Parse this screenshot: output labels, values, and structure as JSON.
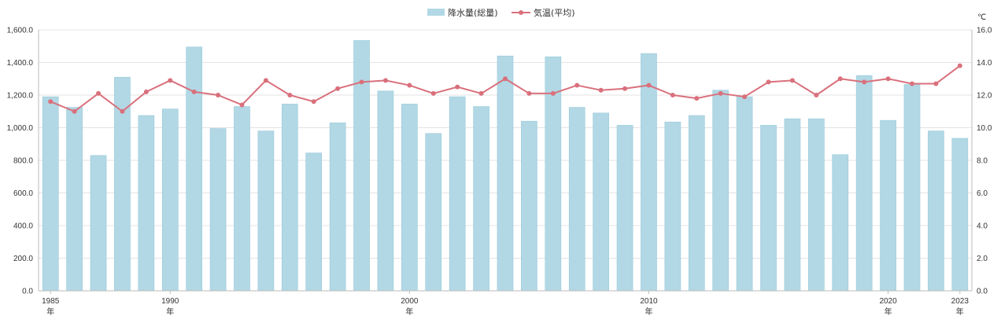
{
  "chart_data": {
    "type": "bar+line",
    "legend": {
      "placement": "top-center",
      "bar_label": "降水量(総量)",
      "line_label": "気温(平均)"
    },
    "y_left": {
      "min": 0,
      "max": 1600,
      "step": 200,
      "ticks": [
        "0.0",
        "200.0",
        "400.0",
        "600.0",
        "800.0",
        "1,000.0",
        "1,200.0",
        "1,400.0",
        "1,600.0"
      ]
    },
    "y_right": {
      "unit": "℃",
      "min": 0,
      "max": 16,
      "step": 2,
      "ticks": [
        "0.0",
        "2.0",
        "4.0",
        "6.0",
        "8.0",
        "10.0",
        "12.0",
        "14.0",
        "16.0"
      ]
    },
    "x_tick_labels": [
      {
        "year": 1985,
        "label": "1985",
        "suffix": "年"
      },
      {
        "year": 1990,
        "label": "1990",
        "suffix": "年"
      },
      {
        "year": 2000,
        "label": "2000",
        "suffix": "年"
      },
      {
        "year": 2010,
        "label": "2010",
        "suffix": "年"
      },
      {
        "year": 2020,
        "label": "2020",
        "suffix": "年"
      },
      {
        "year": 2023,
        "label": "2023",
        "suffix": "年"
      }
    ],
    "years": [
      1985,
      1986,
      1987,
      1988,
      1989,
      1990,
      1991,
      1992,
      1993,
      1994,
      1995,
      1996,
      1997,
      1998,
      1999,
      2000,
      2001,
      2002,
      2003,
      2004,
      2005,
      2006,
      2007,
      2008,
      2009,
      2010,
      2011,
      2012,
      2013,
      2014,
      2015,
      2016,
      2017,
      2018,
      2019,
      2020,
      2021,
      2022,
      2023
    ],
    "series": [
      {
        "name": "降水量(総量)",
        "kind": "bar",
        "axis": "left",
        "values": [
          1190,
          1125,
          830,
          1310,
          1075,
          1115,
          1495,
          995,
          1130,
          980,
          1145,
          845,
          1030,
          1535,
          1225,
          1145,
          965,
          1190,
          1130,
          1440,
          1040,
          1435,
          1125,
          1090,
          1015,
          1455,
          1035,
          1075,
          1230,
          1190,
          1015,
          1055,
          1055,
          835,
          1320,
          1045,
          1265,
          980,
          935
        ]
      },
      {
        "name": "気温(平均)",
        "kind": "line",
        "axis": "right",
        "values": [
          11.6,
          11.0,
          12.1,
          11.0,
          12.2,
          12.9,
          12.2,
          12.0,
          11.4,
          12.9,
          12.0,
          11.6,
          12.4,
          12.8,
          12.9,
          12.6,
          12.1,
          12.5,
          12.1,
          13.0,
          12.1,
          12.1,
          12.6,
          12.3,
          12.4,
          12.6,
          12.0,
          11.8,
          12.1,
          11.9,
          12.8,
          12.9,
          12.0,
          13.0,
          12.8,
          13.0,
          12.7,
          12.7,
          13.8
        ]
      }
    ],
    "colors": {
      "bar": "#b1d8e4",
      "bar_stroke": "#9ccadb",
      "line": "#d9707c",
      "grid": "#e3e3e3",
      "axis": "#bbbbbb",
      "text": "#333333"
    }
  }
}
